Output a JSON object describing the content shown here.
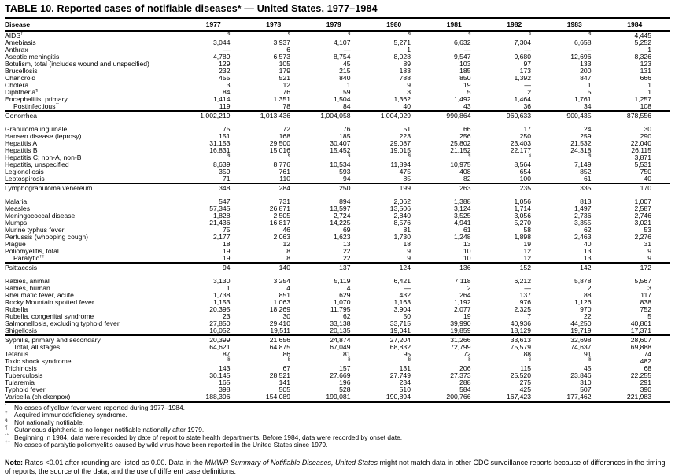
{
  "title": "TABLE 10. Reported cases of notifiable diseases* — United States, 1977–1984",
  "table": {
    "columns": [
      "Disease",
      "1977",
      "1978",
      "1979",
      "1980",
      "1981",
      "1982",
      "1983",
      "1984"
    ],
    "rows": [
      {
        "disease": "AIDS",
        "marker": "†",
        "values": [
          "§",
          "§",
          "§",
          "§",
          "§",
          "§",
          "§",
          "4,445"
        ]
      },
      {
        "disease": "Amebiasis",
        "values": [
          "3,044",
          "3,937",
          "4,107",
          "5,271",
          "6,632",
          "7,304",
          "6,658",
          "5,252"
        ]
      },
      {
        "disease": "Anthrax",
        "values": [
          "—",
          "6",
          "—",
          "1",
          "—",
          "—",
          "—",
          "1"
        ]
      },
      {
        "disease": "Aseptic meningitis",
        "values": [
          "4,789",
          "6,573",
          "8,754",
          "8,028",
          "9,547",
          "9,680",
          "12,696",
          "8,326"
        ]
      },
      {
        "disease": "Botulism, total (includes wound and unspecified)",
        "values": [
          "129",
          "105",
          "45",
          "89",
          "103",
          "97",
          "133",
          "123"
        ]
      },
      {
        "disease": "Brucellosis",
        "values": [
          "232",
          "179",
          "215",
          "183",
          "185",
          "173",
          "200",
          "131"
        ]
      },
      {
        "disease": "Chancroid",
        "values": [
          "455",
          "521",
          "840",
          "788",
          "850",
          "1,392",
          "847",
          "666"
        ]
      },
      {
        "disease": "Cholera",
        "values": [
          "3",
          "12",
          "1",
          "9",
          "19",
          "—",
          "1",
          "1"
        ]
      },
      {
        "disease": "Diphtheria",
        "marker": "¶",
        "values": [
          "84",
          "76",
          "59",
          "3",
          "5",
          "2",
          "5",
          "1"
        ]
      },
      {
        "disease": "Encephalitis, primary",
        "values": [
          "1,414",
          "1,351",
          "1,504",
          "1,362",
          "1,492",
          "1,464",
          "1,761",
          "1,257"
        ]
      },
      {
        "disease": "Postinfectious",
        "marker": "**",
        "indent": true,
        "values": [
          "119",
          "78",
          "84",
          "40",
          "43",
          "36",
          "34",
          "108"
        ]
      },
      {
        "disease": "Gonorrhea",
        "section_start": true,
        "gap_after": true,
        "values": [
          "1,002,219",
          "1,013,436",
          "1,004,058",
          "1,004,029",
          "990,864",
          "960,633",
          "900,435",
          "878,556"
        ]
      },
      {
        "disease": "Granuloma inguinale",
        "values": [
          "75",
          "72",
          "76",
          "51",
          "66",
          "17",
          "24",
          "30"
        ]
      },
      {
        "disease": "Hansen disease (leprosy)",
        "values": [
          "151",
          "168",
          "185",
          "223",
          "256",
          "250",
          "259",
          "290"
        ]
      },
      {
        "disease": "Hepatitis A",
        "values": [
          "31,153",
          "29,500",
          "30,407",
          "29,087",
          "25,802",
          "23,403",
          "21,532",
          "22,040"
        ]
      },
      {
        "disease": "Hepatitis B",
        "values": [
          "16,831",
          "15,016",
          "15,452",
          "19,015",
          "21,152",
          "22,177",
          "24,318",
          "26,115"
        ]
      },
      {
        "disease": "Hepatitis C; non-A, non-B",
        "values": [
          "§",
          "§",
          "§",
          "§",
          "§",
          "§",
          "§",
          "3,871"
        ]
      },
      {
        "disease": "Hepatitis, unspecified",
        "values": [
          "8,639",
          "8,776",
          "10,534",
          "11,894",
          "10,975",
          "8,564",
          "7,149",
          "5,531"
        ]
      },
      {
        "disease": "Legionellosis",
        "values": [
          "359",
          "761",
          "593",
          "475",
          "408",
          "654",
          "852",
          "750"
        ]
      },
      {
        "disease": "Leptospirosis",
        "values": [
          "71",
          "110",
          "94",
          "85",
          "82",
          "100",
          "61",
          "40"
        ]
      },
      {
        "disease": "Lymphogranuloma venereum",
        "section_start": true,
        "gap_after": true,
        "values": [
          "348",
          "284",
          "250",
          "199",
          "263",
          "235",
          "335",
          "170"
        ]
      },
      {
        "disease": "Malaria",
        "values": [
          "547",
          "731",
          "894",
          "2,062",
          "1,388",
          "1,056",
          "813",
          "1,007"
        ]
      },
      {
        "disease": "Measles",
        "values": [
          "57,345",
          "26,871",
          "13,597",
          "13,506",
          "3,124",
          "1,714",
          "1,497",
          "2,587"
        ]
      },
      {
        "disease": "Meningococcal disease",
        "values": [
          "1,828",
          "2,505",
          "2,724",
          "2,840",
          "3,525",
          "3,056",
          "2,736",
          "2,746"
        ]
      },
      {
        "disease": "Mumps",
        "values": [
          "21,436",
          "16,817",
          "14,225",
          "8,576",
          "4,941",
          "5,270",
          "3,355",
          "3,021"
        ]
      },
      {
        "disease": "Murine typhus fever",
        "values": [
          "75",
          "46",
          "69",
          "81",
          "61",
          "58",
          "62",
          "53"
        ]
      },
      {
        "disease": "Pertussis (whooping cough)",
        "values": [
          "2,177",
          "2,063",
          "1,623",
          "1,730",
          "1,248",
          "1,898",
          "2,463",
          "2,276"
        ]
      },
      {
        "disease": "Plague",
        "values": [
          "18",
          "12",
          "13",
          "18",
          "13",
          "19",
          "40",
          "31"
        ]
      },
      {
        "disease": "Poliomyelitis, total",
        "values": [
          "19",
          "8",
          "22",
          "9",
          "10",
          "12",
          "13",
          "9"
        ]
      },
      {
        "disease": "Paralytic",
        "marker": "††",
        "indent": true,
        "values": [
          "19",
          "8",
          "22",
          "9",
          "10",
          "12",
          "13",
          "9"
        ]
      },
      {
        "disease": "Psittacosis",
        "section_start": true,
        "gap_after": true,
        "values": [
          "94",
          "140",
          "137",
          "124",
          "136",
          "152",
          "142",
          "172"
        ]
      },
      {
        "disease": "Rabies, animal",
        "values": [
          "3,130",
          "3,254",
          "5,119",
          "6,421",
          "7,118",
          "6,212",
          "5,878",
          "5,567"
        ]
      },
      {
        "disease": "Rabies, human",
        "values": [
          "1",
          "4",
          "4",
          "—",
          "2",
          "—",
          "2",
          "3"
        ]
      },
      {
        "disease": "Rheumatic fever, acute",
        "values": [
          "1,738",
          "851",
          "629",
          "432",
          "264",
          "137",
          "88",
          "117"
        ]
      },
      {
        "disease": "Rocky Mountain spotted fever",
        "values": [
          "1,153",
          "1,063",
          "1,070",
          "1,163",
          "1,192",
          "976",
          "1,126",
          "838"
        ]
      },
      {
        "disease": "Rubella",
        "values": [
          "20,395",
          "18,269",
          "11,795",
          "3,904",
          "2,077",
          "2,325",
          "970",
          "752"
        ]
      },
      {
        "disease": "Rubella, congenital syndrome",
        "values": [
          "23",
          "30",
          "62",
          "50",
          "19",
          "7",
          "22",
          "5"
        ]
      },
      {
        "disease": "Salmonellosis, excluding typhoid fever",
        "values": [
          "27,850",
          "29,410",
          "33,138",
          "33,715",
          "39,990",
          "40,936",
          "44,250",
          "40,861"
        ]
      },
      {
        "disease": "Shigellosis",
        "values": [
          "16,052",
          "19,511",
          "20,135",
          "19,041",
          "19,859",
          "18,129",
          "19,719",
          "17,371"
        ]
      },
      {
        "disease": "Syphilis, primary and secondary",
        "section_start": true,
        "values": [
          "20,399",
          "21,656",
          "24,874",
          "27,204",
          "31,266",
          "33,613",
          "32,698",
          "28,607"
        ]
      },
      {
        "disease": "Total, all stages",
        "indent": true,
        "values": [
          "64,621",
          "64,875",
          "67,049",
          "68,832",
          "72,799",
          "75,579",
          "74,637",
          "69,888"
        ]
      },
      {
        "disease": "Tetanus",
        "values": [
          "87",
          "86",
          "81",
          "95",
          "72",
          "88",
          "91",
          "74"
        ]
      },
      {
        "disease": "Toxic shock syndrome",
        "values": [
          "§",
          "§",
          "§",
          "§",
          "§",
          "§",
          "§",
          "482"
        ]
      },
      {
        "disease": "Trichinosis",
        "values": [
          "143",
          "67",
          "157",
          "131",
          "206",
          "115",
          "45",
          "68"
        ]
      },
      {
        "disease": "Tuberculosis",
        "values": [
          "30,145",
          "28,521",
          "27,669",
          "27,749",
          "27,373",
          "25,520",
          "23,846",
          "22,255"
        ]
      },
      {
        "disease": "Tularemia",
        "values": [
          "165",
          "141",
          "196",
          "234",
          "288",
          "275",
          "310",
          "291"
        ]
      },
      {
        "disease": "Typhoid fever",
        "values": [
          "398",
          "505",
          "528",
          "510",
          "584",
          "425",
          "507",
          "390"
        ]
      },
      {
        "disease": "Varicella (chickenpox)",
        "last": true,
        "values": [
          "188,396",
          "154,089",
          "199,081",
          "190,894",
          "200,766",
          "167,423",
          "177,462",
          "221,983"
        ]
      }
    ]
  },
  "footnotes": [
    {
      "marker": "*",
      "text": "No cases of yellow fever were reported during 1977–1984."
    },
    {
      "marker": "†",
      "text": "Acquired immunodeficiency syndrome."
    },
    {
      "marker": "§",
      "text": "Not nationally notifiable."
    },
    {
      "marker": "¶",
      "text": "Cutaneous diphtheria is no longer notifiable nationally after 1979."
    },
    {
      "marker": "**",
      "text": "Beginning in 1984, data were recorded by date of report to state health departments.  Before 1984, data were recorded by onset date."
    },
    {
      "marker": "††",
      "text": "No cases of paralytic poliomyelitis caused by wild virus have been reported in the United States since 1979."
    }
  ],
  "note": {
    "label": "Note:",
    "pre": " Rates <0.01 after rounding are listed as 0.00. Data in the ",
    "italic": "MMWR Summary of Notifiable Diseases, United States",
    "post": " might not match data in other CDC surveillance reports because of differences in the timing of reports, the source of the data, and the use of different case definitions."
  }
}
